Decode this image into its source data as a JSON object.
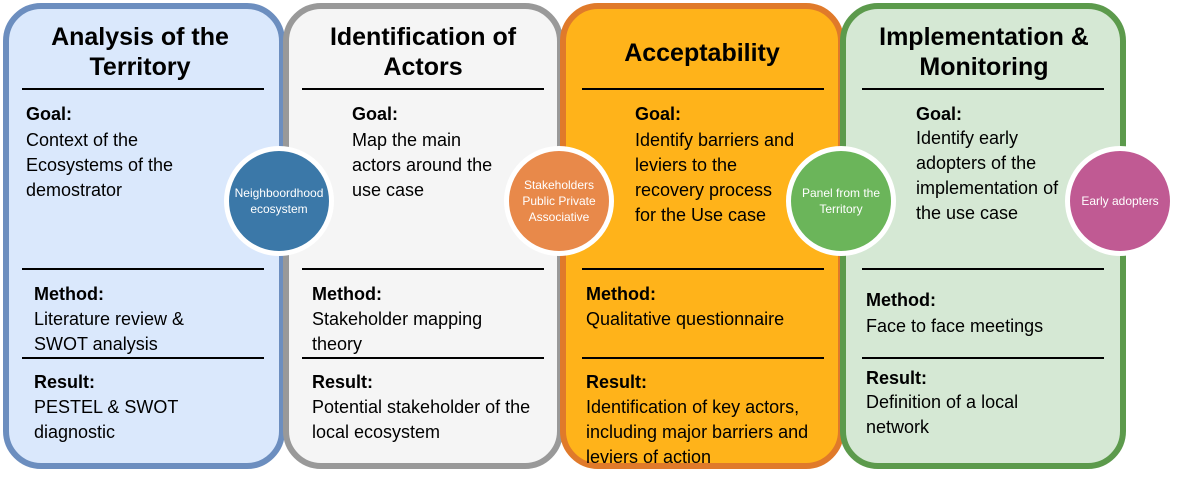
{
  "stages": [
    {
      "title": "Analysis of the Territory",
      "goal_label": "Goal:",
      "goal": "Context of the Ecosystems of the demostrator",
      "method_label": "Method:",
      "method": "Literature review & SWOT analysis",
      "result_label": "Result:",
      "result": "PESTEL & SWOT diagnostic",
      "circle": "Neighboordhood ecosystem"
    },
    {
      "title": "Identification of Actors",
      "goal_label": "Goal:",
      "goal": "Map the main actors around the use case",
      "method_label": "Method:",
      "method": "Stakeholder mapping theory",
      "result_label": "Result:",
      "result": "Potential stakeholder of the local ecosystem",
      "circle": "Stakeholders Public Private Associative"
    },
    {
      "title": "Acceptability",
      "goal_label": "Goal:",
      "goal": "Identify barriers and leviers to the recovery process for the Use case",
      "method_label": "Method:",
      "method": "Qualitative questionnaire",
      "result_label": "Result:",
      "result": "Identification of key actors, including major  barriers and leviers of action",
      "circle": "Panel from the Territory"
    },
    {
      "title": "Implementation & Monitoring",
      "goal_label": "Goal:",
      "goal": "Identify early adopters of the implementation of the use case",
      "method_label": "Method:",
      "method": "Face to face meetings",
      "result_label": "Result:",
      "result": "Definition of a local network",
      "circle": "Early adopters"
    }
  ],
  "colors": {
    "stage_fills": [
      "#dae8fc",
      "#f5f5f5",
      "#ffb31a",
      "#d5e8d4"
    ],
    "stage_borders": [
      "#6c8ebf",
      "#999999",
      "#e07a2a",
      "#5c9a4c"
    ],
    "circle_fills": [
      "#3b78a8",
      "#e8894a",
      "#6bb55a",
      "#c05a93"
    ]
  }
}
